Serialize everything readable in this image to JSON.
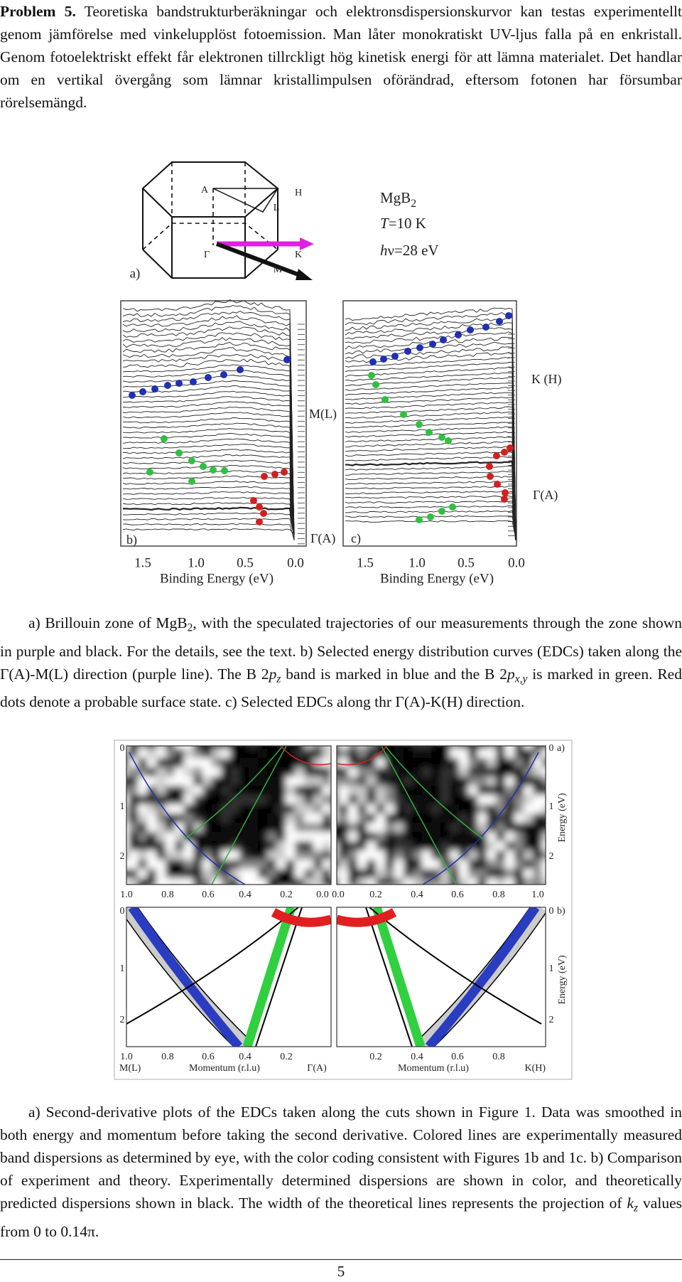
{
  "problem": {
    "label": "Problem 5.",
    "text": "Teoretiska bandstrukturberäkningar och elektronsdispersionskurvor kan testas experimentellt genom jämförelse med vinkelupplöst fotoemission. Man låter monokratiskt UV-ljus falla på en enkristall. Genom fotoelektriskt effekt får elektronen tillrckligt hög kinetisk energi för att lämna materialet. Det handlar om en vertikal övergång som lämnar kristallimpulsen oförändrad, eftersom fotonen har försumbar rörelsemängd."
  },
  "figure1": {
    "zone": {
      "label": "a)",
      "points": [
        "A",
        "H",
        "L",
        "Γ",
        "K",
        "M"
      ]
    },
    "sample": [
      {
        "text": "MgB"
      },
      {
        "sub": "2"
      }
    ],
    "temperature": [
      {
        "italic": "T"
      },
      {
        "text": "=10 K"
      }
    ],
    "photon": [
      {
        "italic": "h"
      },
      {
        "text": "ν=28 eV"
      }
    ],
    "panels": [
      {
        "label": "b)",
        "markers": [
          "M(L)",
          "Γ(A)"
        ],
        "xticks": [
          "1.5",
          "1.0",
          "0.5",
          "0.0"
        ],
        "xlabel": "Binding Energy (eV)"
      },
      {
        "label": "c)",
        "markers": [
          "K (H)",
          "Γ(A)"
        ],
        "xticks": [
          "1.5",
          "1.0",
          "0.5",
          "0.0"
        ],
        "xlabel": "Binding Energy (eV)"
      }
    ]
  },
  "caption1": [
    {
      "text": "a) Brillouin zone of MgB"
    },
    {
      "sub": "2"
    },
    {
      "text": ", with the speculated trajectories of our measurements through the zone shown in purple and black. For the details, see the text. b) Selected energy distribution curves (EDCs) taken along the Γ(A)-M(L) direction (purple line). The B 2"
    },
    {
      "italic": "p"
    },
    {
      "isub": "z"
    },
    {
      "text": " band is marked in blue and the B 2"
    },
    {
      "italic": "p"
    },
    {
      "isub": "x,y"
    },
    {
      "text": " is marked in green. Red dots denote a probable surface state. c) Selected EDCs along thr Γ(A)-K(H) direction."
    }
  ],
  "figure2": {
    "panel_a": {
      "label": "a)",
      "left_xticks": [
        "1.0",
        "0.8",
        "0.6",
        "0.4",
        "0.2",
        "0.0"
      ],
      "right_xticks": [
        "0.0",
        "0.2",
        "0.4",
        "0.6",
        "0.8",
        "1.0"
      ],
      "yticks": [
        "0",
        "1",
        "2"
      ],
      "ylabel": "Energy (eV)"
    },
    "panel_b": {
      "label": "b)",
      "left_xticks": [
        "1.0",
        "0.8",
        "0.6",
        "0.4",
        "0.2"
      ],
      "right_xticks": [
        "0.2",
        "0.4",
        "0.6",
        "0.8"
      ],
      "yticks": [
        "0",
        "1",
        "2"
      ],
      "ylabel": "Energy (eV)",
      "left_end": "M(L)",
      "center": "Γ(A)",
      "right_end": "K(H)",
      "xlabels": [
        "Momentum (r.l.u)",
        "Momentum (r.l.u)"
      ]
    }
  },
  "caption2": [
    {
      "text": "a) Second-derivative plots of the EDCs taken along the cuts shown in Figure 1. Data was smoothed in both energy and momentum before taking the second derivative. Colored lines are experimentally measured band dispersions as determined by eye, with the color coding consistent with Figures 1b and 1c. b) Comparison of experiment and theory. Experimentally determined dispersions are shown in color, and theoretically predicted dispersions shown in black. The width of the theoretical lines represents the projection of "
    },
    {
      "italic": "k"
    },
    {
      "isub": "z"
    },
    {
      "text": " values from 0 to 0.14π."
    }
  ],
  "page_number": "5"
}
